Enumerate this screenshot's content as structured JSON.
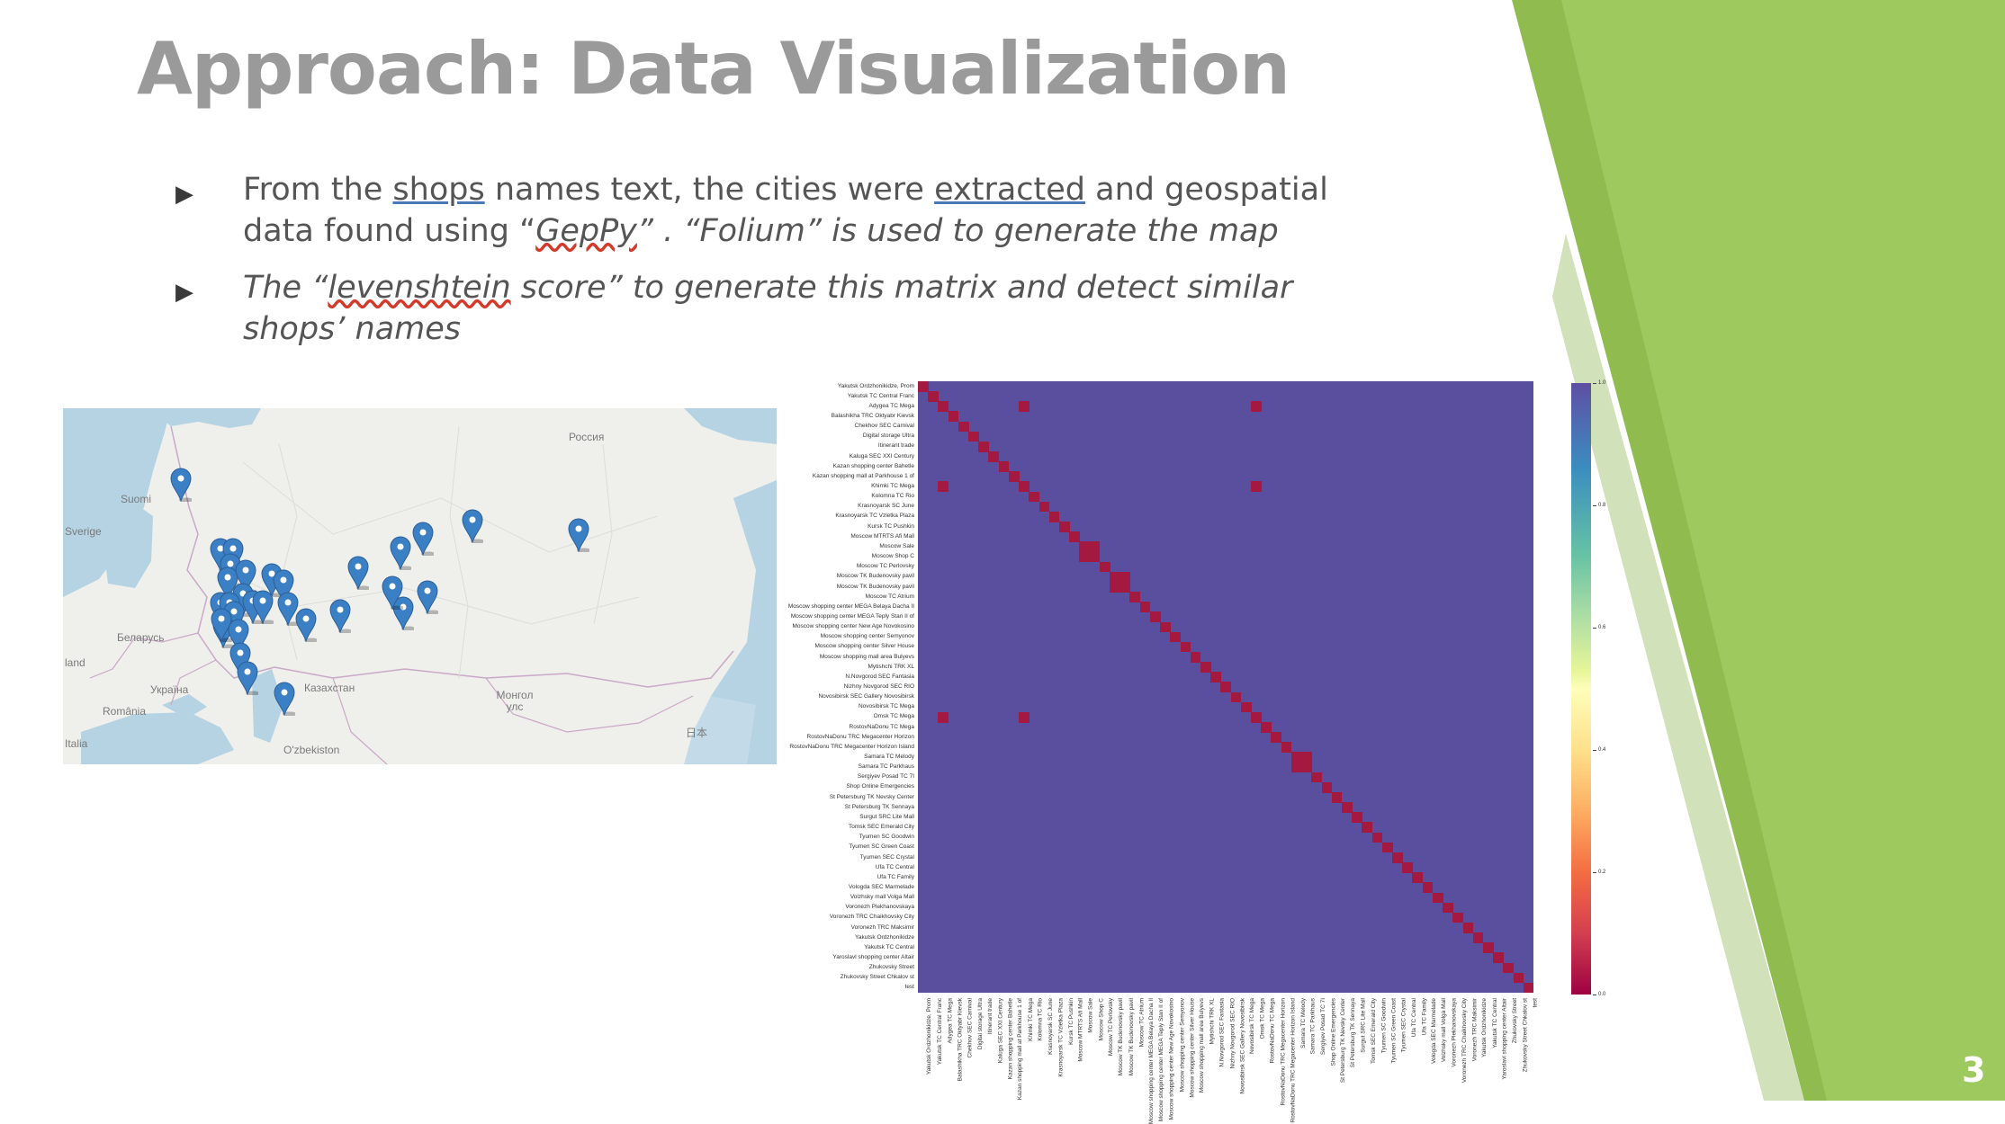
{
  "slide": {
    "title": "Approach: Data Visualization",
    "page_number": "3",
    "accent_colors": [
      "#8fbb4f",
      "#9ec95e",
      "#7aa83a"
    ],
    "title_color": "#9a9a9a"
  },
  "bullets": [
    {
      "t1": "From the ",
      "t2": "shops",
      "t3": " names text, the cities were ",
      "t4": "extracted",
      "t5": " and geospatial data found using “",
      "t6": "GepPy",
      "t7": "” . “Folium”  is used to generate the map"
    },
    {
      "t1": "The “",
      "t2": "levenshtein",
      "t3": " score” to generate this matrix and detect similar shops’ names"
    }
  ],
  "map": {
    "labels": [
      "Россия",
      "Suomi",
      "Sverige",
      "Беларусь",
      "land",
      "Україна",
      "România",
      "Казахстан",
      "Монгол улс",
      "O'zbekiston",
      "Italia",
      "日本"
    ],
    "marker_color": "#3b7fc4",
    "marker_icon": "map-pin-icon"
  },
  "heatmap": {
    "row_labels": [
      "Yakutsk Ordzhonikidze, Prom",
      "Yakutsk TC Central Franc",
      "Adygea TC Mega",
      "Balashikha TRC Oktyabr Kievsk",
      "Chekhov SEC Carnival",
      "Digital storage Ultra",
      "Itinerant trade",
      "Kaluga SEC XXI Century",
      "Kazan shopping center Bahetle",
      "Kazan shopping mall at Parkhouse 1 of",
      "Khimki TC Mega",
      "Kolomna TC Rio",
      "Krasnoyarsk SC June",
      "Krasnoyarsk TC Vzletka Plaza",
      "Kursk TC Pushkin",
      "Moscow MTRTS Afi Mall",
      "Moscow Sale",
      "Moscow Shop C",
      "Moscow TC Perlovsky",
      "Moscow TK Budenovsky pavil",
      "Moscow TK Budenovsky pavil",
      "Moscow TC Atrium",
      "Moscow shopping center MEGA Belaya Dacha II",
      "Moscow shopping center MEGA Teply Stan II of",
      "Moscow shopping center New Age Novokosino",
      "Moscow shopping center Semyonov",
      "Moscow shopping center Silver House",
      "Moscow shopping mall area Bulyevs",
      "Mytishchi TRK XL",
      "N.Novgorod SEC Fantasia",
      "Nizhny Novgorod SEC RIO",
      "Novosibirsk SEC Gallery Novosibirsk",
      "Novosibirsk TC Mega",
      "Omsk TC Mega",
      "RostovNaDonu TC Mega",
      "RostovNaDonu TRC Megacenter Horizon",
      "RostovNaDonu TRC Megacenter Horizon Island",
      "Samara TC Melody",
      "Samara TC Parkhaus",
      "Sergiyev Posad TC 7I",
      "Shop Online Emergencies",
      "St Petersburg TK Nevsky Center",
      "St Petersburg TK Sennaya",
      "Surgut SRC Lite Mall",
      "Tomsk SEC Emerald City",
      "Tyumen SC Goodwin",
      "Tyumen SC Green Coast",
      "Tyumen SEC Crystal",
      "Ufa TC Central",
      "Ufa TC Family",
      "Vologda SEC Marmelade",
      "Volzhsky mall Volga Mall",
      "Voronezh Plekhanovskaya",
      "Voronezh TRC Chaikhovsky City",
      "Voronezh TRC Maksimir",
      "Yakutsk Ordzhonikidze",
      "Yakutsk TC Central",
      "Yaroslavl shopping center Altair",
      "Zhukovsky Street",
      "Zhukovsky Street Chkalov st",
      "test"
    ],
    "colorbar_ticks": [
      "1.0",
      "0.8",
      "0.6",
      "0.4",
      "0.2",
      "0.0"
    ],
    "colormap": "Spectral",
    "high_color": "#5a4f9e",
    "low_color": "#a3193f"
  }
}
